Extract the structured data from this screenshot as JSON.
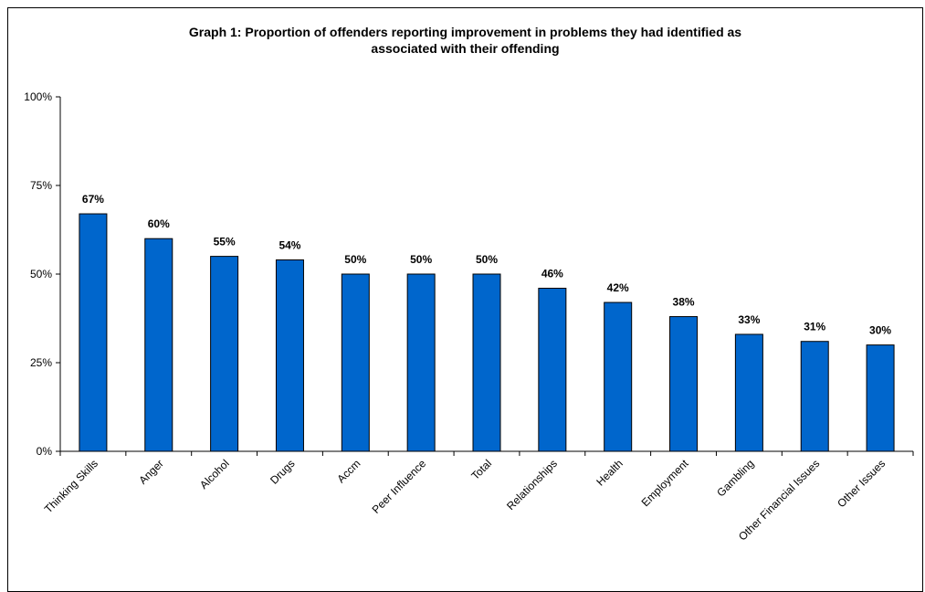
{
  "chart_data": {
    "type": "bar",
    "title": "Graph 1: Proportion of offenders reporting improvement in problems they had identified as associated with their offending",
    "title_lines": [
      "Graph 1: Proportion of offenders reporting improvement in problems they had identified as",
      "associated with their offending"
    ],
    "categories": [
      "Thinking Skills",
      "Anger",
      "Alcohol",
      "Drugs",
      "Accm",
      "Peer Influence",
      "Total",
      "Relationships",
      "Health",
      "Employment",
      "Gambling",
      "Other Financial Issues",
      "Other Issues"
    ],
    "values": [
      67,
      60,
      55,
      54,
      50,
      50,
      50,
      46,
      42,
      38,
      33,
      31,
      30
    ],
    "data_labels": [
      "67%",
      "60%",
      "55%",
      "54%",
      "50%",
      "50%",
      "50%",
      "46%",
      "42%",
      "38%",
      "33%",
      "31%",
      "30%"
    ],
    "ylim": [
      0,
      100
    ],
    "yticks": [
      0,
      25,
      50,
      75,
      100
    ],
    "ytick_labels": [
      "0%",
      "25%",
      "50%",
      "75%",
      "100%"
    ],
    "xlabel": "",
    "ylabel": "",
    "grid": false,
    "bar_color": "#0066cc",
    "bar_outline_color": "#000000"
  }
}
